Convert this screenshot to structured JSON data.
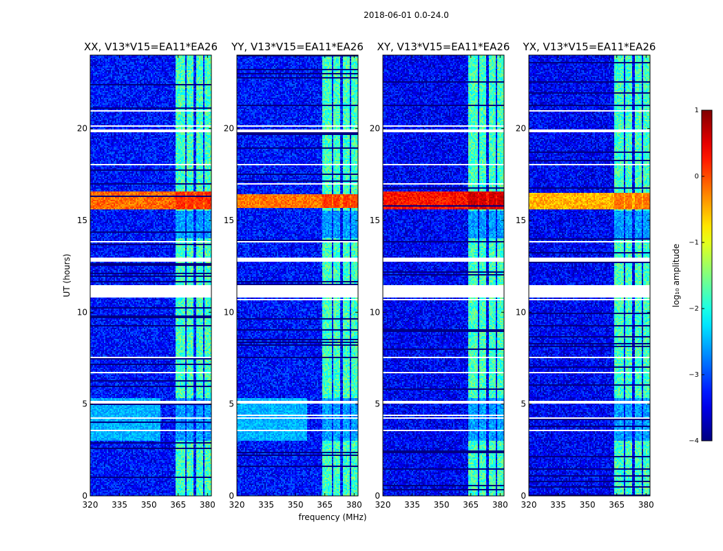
{
  "chart_data": {
    "type": "heatmap",
    "suptitle": "2018-06-01 0.0-24.0",
    "xlabel": "frequency (MHz)",
    "ylabel": "UT (hours)",
    "xlim": [
      320,
      382
    ],
    "ylim": [
      0,
      24
    ],
    "xticks": [
      320,
      335,
      350,
      365,
      380
    ],
    "yticks": [
      0,
      5,
      10,
      15,
      20
    ],
    "colorbar": {
      "label": "log₁₀ amplitude",
      "range": [
        -4,
        1
      ],
      "ticks": [
        1,
        0,
        -1,
        -2,
        -3,
        -4
      ],
      "tick_labels": [
        "1",
        "0",
        "−1",
        "−2",
        "−3",
        "−4"
      ],
      "colormap": "jet"
    },
    "panels": [
      {
        "title": "XX, V13*V15=EA11*EA26",
        "rfi_level": -0.15,
        "rfi_band": [
          15.6,
          16.6
        ],
        "background": -3.3
      },
      {
        "title": "YY, V13*V15=EA11*EA26",
        "rfi_level": -0.2,
        "rfi_band": [
          15.7,
          16.4
        ],
        "background": -3.3
      },
      {
        "title": "XY, V13*V15=EA11*EA26",
        "rfi_level": 0.3,
        "rfi_band": [
          15.6,
          16.6
        ],
        "background": -3.4
      },
      {
        "title": "YX, V13*V15=EA11*EA26",
        "rfi_level": -0.5,
        "rfi_band": [
          15.6,
          16.5
        ],
        "background": -3.4
      }
    ],
    "flagged_hours": [
      [
        10.8,
        11.45
      ],
      [
        12.75,
        12.95
      ],
      [
        19.8,
        19.95
      ],
      [
        18.0,
        18.1
      ],
      [
        5.05,
        5.15
      ],
      [
        4.2,
        4.3
      ],
      [
        3.5,
        3.6
      ]
    ],
    "signal_channels_mhz": [
      [
        363.5,
        368.5
      ],
      [
        369,
        373
      ],
      [
        374,
        378
      ],
      [
        378.5,
        382
      ]
    ]
  }
}
